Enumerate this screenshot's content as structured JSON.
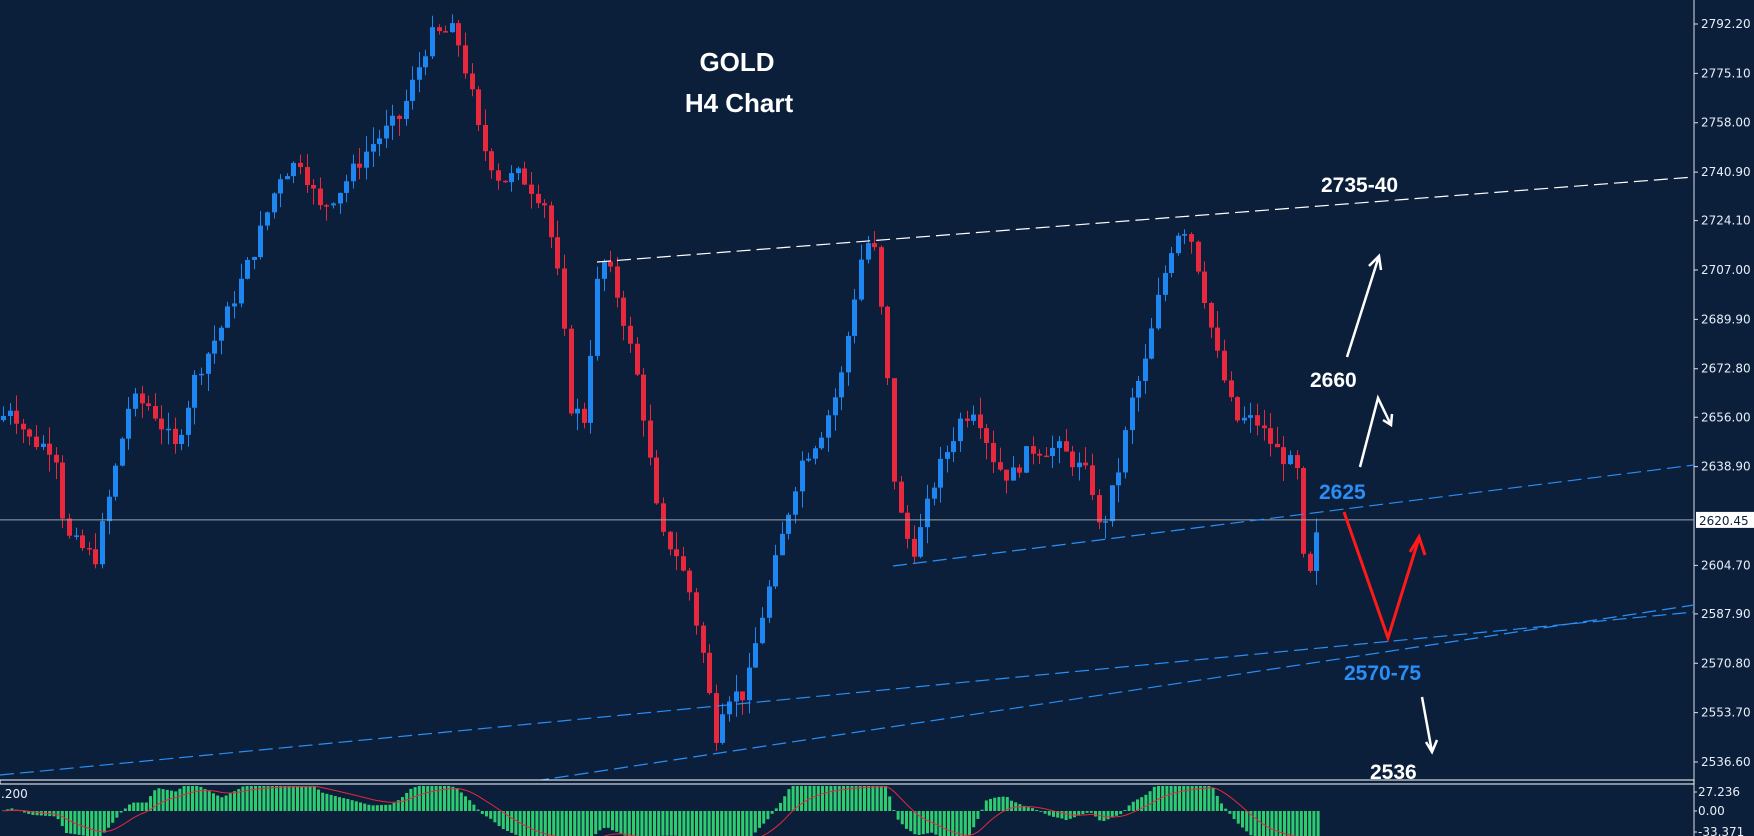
{
  "chart_data": {
    "type": "candlestick",
    "title": "GOLD",
    "subtitle": "H4 Chart",
    "symbol": "GOLD",
    "timeframe": "H4",
    "price_axis": {
      "ticks": [
        2792.2,
        2775.1,
        2758.0,
        2740.9,
        2724.1,
        2707.0,
        2689.9,
        2672.8,
        2656.0,
        2638.9,
        2604.7,
        2587.9,
        2570.8,
        2553.7,
        2536.6
      ],
      "tick_labels": [
        "2792.20",
        "2775.10",
        "2758.00",
        "2740.90",
        "2724.10",
        "2707.00",
        "2689.90",
        "2672.80",
        "2656.00",
        "2638.90",
        "2604.70",
        "2587.90",
        "2570.80",
        "2553.70",
        "2536.60"
      ],
      "ylim": [
        2530,
        2800
      ]
    },
    "current_price": {
      "value": 2620.45,
      "label": "2620.45"
    },
    "colors": {
      "background": "#0b1f3b",
      "bull": "#1e86f0",
      "bear": "#e8283c",
      "trend_white": "#ffffff",
      "trend_blue": "#2a8ef5",
      "macd_hist": "#2ecc71",
      "macd_signal": "#e8283c",
      "arrow_red": "#ff1a1a"
    },
    "annotations": [
      {
        "text": "2735-40",
        "color": "#ffffff",
        "role": "resistance target"
      },
      {
        "text": "2660",
        "color": "#ffffff",
        "role": "intermediate level"
      },
      {
        "text": "2625",
        "color": "#2a8ef5",
        "role": "resistance / breakout"
      },
      {
        "text": "2570-75",
        "color": "#2a8ef5",
        "role": "support zone"
      },
      {
        "text": "2536",
        "color": "#ffffff",
        "role": "downside target"
      }
    ],
    "key_swings": [
      {
        "label": "left low",
        "price": 2607
      },
      {
        "label": "all-time high",
        "price": 2790
      },
      {
        "label": "swing high",
        "price": 2711
      },
      {
        "label": "major low",
        "price": 2537
      },
      {
        "label": "swing high",
        "price": 2722
      },
      {
        "label": "swing high",
        "price": 2727
      },
      {
        "label": "recent low",
        "price": 2584
      },
      {
        "label": "last close",
        "price": 2620.45
      }
    ],
    "macd": {
      "label_left": ".200",
      "ticks": [
        "27.236",
        "0.00",
        "-33.371"
      ],
      "ylim": [
        -33.371,
        27.236
      ]
    },
    "grid": false,
    "legend": "none"
  }
}
